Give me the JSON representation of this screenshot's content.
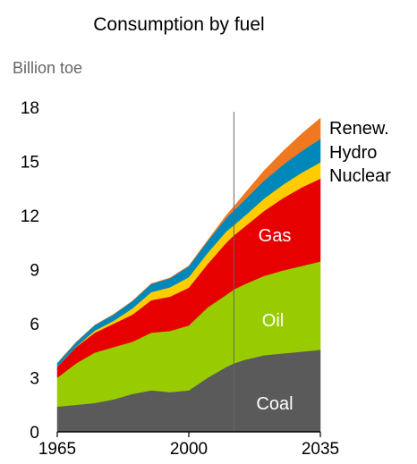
{
  "chart_data": {
    "type": "area",
    "title": "Consumption by fuel",
    "ylabel": "Billion toe",
    "xlabel": "",
    "xlim": [
      1965,
      2035
    ],
    "ylim": [
      0,
      18
    ],
    "x_ticks": [
      1965,
      2000,
      2035
    ],
    "y_ticks": [
      0,
      3,
      6,
      9,
      12,
      15,
      18
    ],
    "stacked": true,
    "forecast_divider_x": 2012,
    "x": [
      1965,
      1970,
      1975,
      1980,
      1985,
      1990,
      1995,
      2000,
      2005,
      2010,
      2012,
      2015,
      2020,
      2025,
      2030,
      2035
    ],
    "series": [
      {
        "name": "Coal",
        "color": "#5a5a5a",
        "values": [
          1.4,
          1.5,
          1.6,
          1.8,
          2.1,
          2.3,
          2.2,
          2.3,
          3.0,
          3.6,
          3.8,
          4.0,
          4.25,
          4.35,
          4.45,
          4.55
        ]
      },
      {
        "name": "Oil",
        "color": "#99cc00",
        "values": [
          1.6,
          2.3,
          2.8,
          2.9,
          2.9,
          3.2,
          3.4,
          3.6,
          3.9,
          4.0,
          4.1,
          4.2,
          4.4,
          4.6,
          4.75,
          4.9
        ]
      },
      {
        "name": "Gas",
        "color": "#e60000",
        "values": [
          0.6,
          0.9,
          1.1,
          1.3,
          1.5,
          1.8,
          1.9,
          2.1,
          2.4,
          2.9,
          3.0,
          3.2,
          3.6,
          4.0,
          4.35,
          4.6
        ]
      },
      {
        "name": "Nuclear",
        "color": "#ffcc00",
        "values": [
          0.01,
          0.02,
          0.12,
          0.16,
          0.35,
          0.45,
          0.52,
          0.58,
          0.62,
          0.62,
          0.56,
          0.6,
          0.68,
          0.75,
          0.82,
          0.9
        ]
      },
      {
        "name": "Hydro",
        "color": "#0088bb",
        "values": [
          0.2,
          0.25,
          0.3,
          0.35,
          0.4,
          0.45,
          0.5,
          0.6,
          0.65,
          0.75,
          0.82,
          0.9,
          1.0,
          1.1,
          1.2,
          1.3
        ]
      },
      {
        "name": "Renew.",
        "color": "#f07820",
        "values": [
          0.0,
          0.0,
          0.0,
          0.01,
          0.01,
          0.02,
          0.02,
          0.03,
          0.05,
          0.15,
          0.22,
          0.35,
          0.55,
          0.75,
          0.95,
          1.15
        ]
      }
    ],
    "labels": {
      "Renew.": "Renew.",
      "Hydro": "Hydro",
      "Nuclear": "Nuclear",
      "Gas": "Gas",
      "Oil": "Oil",
      "Coal": "Coal"
    }
  }
}
